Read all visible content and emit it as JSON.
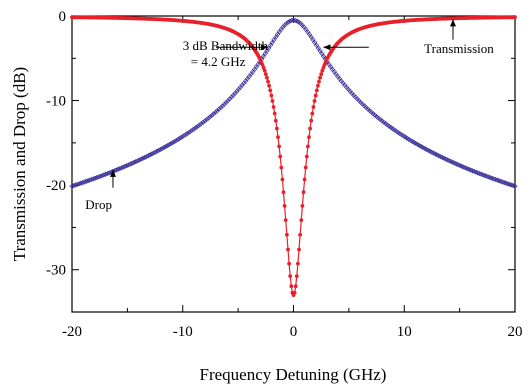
{
  "chart_data": {
    "type": "scatter",
    "title": "",
    "xlabel": "Frequency Detuning (GHz)",
    "ylabel": "Transmission and Drop (dB)",
    "xlim": [
      -20,
      20
    ],
    "ylim": [
      -35,
      0
    ],
    "x_ticks": [
      -20,
      -10,
      0,
      10,
      20
    ],
    "x_tick_labels": [
      "-20",
      "-10",
      "0",
      "10",
      "20"
    ],
    "y_ticks": [
      0,
      -10,
      -20,
      -30
    ],
    "y_tick_labels": [
      "0",
      "-10",
      "-20",
      "-30"
    ],
    "grid": false,
    "legend": "none",
    "series": [
      {
        "label": "Transmission",
        "color": "#e8202a",
        "marker": "filled-circle",
        "center_x": 0,
        "min_db": -33,
        "fwhm_ghz": 4.2
      },
      {
        "label": "Drop",
        "color": "#3a2f9a",
        "marker": "open-diamond",
        "center_x": 0,
        "peak_db": -0.5,
        "fwhm_ghz": 4.2,
        "samples": [
          {
            "x": -20,
            "y": -19.5
          },
          {
            "x": -15,
            "y": -17.1
          },
          {
            "x": -10,
            "y": -13.4
          },
          {
            "x": -5,
            "y": -7.9
          },
          {
            "x": -2.1,
            "y": -3.5
          },
          {
            "x": 0,
            "y": -0.5
          },
          {
            "x": 2.1,
            "y": -3.5
          },
          {
            "x": 5,
            "y": -7.9
          },
          {
            "x": 10,
            "y": -13.4
          },
          {
            "x": 15,
            "y": -17.1
          },
          {
            "x": 20,
            "y": -19.5
          }
        ]
      }
    ],
    "annotations": [
      {
        "text_lines": [
          "3 dB Bandwidth",
          "= 4.2 GHz"
        ],
        "x": -10,
        "y": -4,
        "arrow_to_x": -2.3,
        "arrow_to_y": -3.7,
        "arrow_from_x": -7,
        "arrow_from_y": -3.7
      },
      {
        "text_lines": [
          "Transmission"
        ],
        "x": 11.8,
        "y": -4.4,
        "arrow_to_x": 14.4,
        "arrow_to_y": -0.4,
        "arrow_from_x": 14.4,
        "arrow_from_y": -2.8
      },
      {
        "text_lines": [
          "Drop"
        ],
        "x": -18.8,
        "y": -22.8,
        "arrow_to_x": -16.3,
        "arrow_to_y": -18.2,
        "arrow_from_x": -16.3,
        "arrow_from_y": -20.3
      },
      {
        "text_lines": [],
        "x": 2.7,
        "y": -3.7,
        "arrow_to_x": 2.7,
        "arrow_to_y": -3.7,
        "arrow_from_x": 6.8,
        "arrow_from_y": -3.7
      }
    ]
  }
}
